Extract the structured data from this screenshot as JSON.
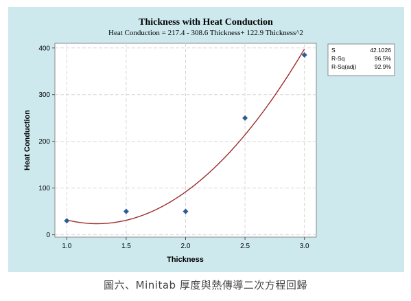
{
  "caption": "圖六、Minitab 厚度與熱傳導二次方程回歸",
  "colors": {
    "frame_bg": "#cde9ee",
    "plot_bg": "#ffffff",
    "grid": "#d7d7d7",
    "points": "#2d5b9a",
    "fit_line": "#9b2b2b"
  },
  "chart_data": {
    "type": "scatter",
    "title": "Thickness with Heat Conduction",
    "subtitle": "Heat Conduction = 217.4 - 308.6 Thickness+ 122.9 Thickness^2",
    "xlabel": "Thickness",
    "ylabel": "Heat Conduction",
    "x_ticks": [
      "1.0",
      "1.5",
      "2.0",
      "2.5",
      "3.0"
    ],
    "y_ticks": [
      "0",
      "100",
      "200",
      "300",
      "400"
    ],
    "xlim": [
      0.9,
      3.1
    ],
    "ylim": [
      -5,
      410
    ],
    "grid": true,
    "points": {
      "x": [
        1.0,
        1.5,
        2.0,
        2.5,
        3.0
      ],
      "y": [
        30,
        50,
        50,
        250,
        385
      ]
    },
    "fit": {
      "type": "quadratic",
      "coefficients": [
        217.4,
        -308.6,
        122.9
      ]
    },
    "stats": [
      {
        "label": "S",
        "value": "42.1026"
      },
      {
        "label": "R-Sq",
        "value": "96.5%"
      },
      {
        "label": "R-Sq(adj)",
        "value": "92.9%"
      }
    ]
  }
}
